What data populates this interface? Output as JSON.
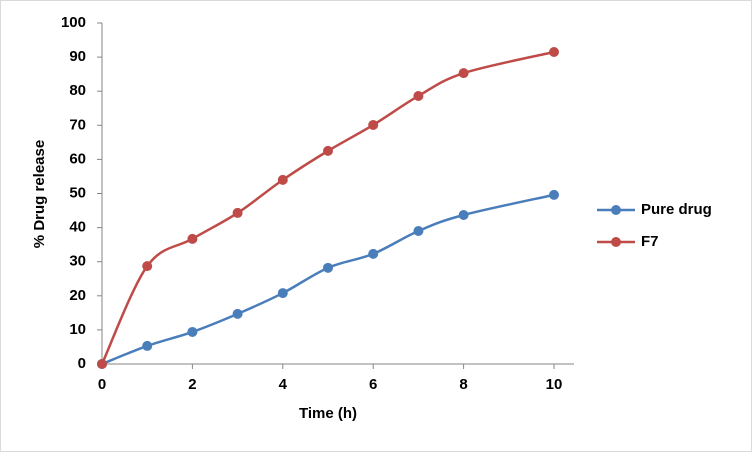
{
  "chart_data": {
    "type": "line",
    "x_label": "Time (h)",
    "y_label": "% Drug release",
    "x": [
      0,
      1,
      2,
      3,
      4,
      5,
      6,
      7,
      8,
      10
    ],
    "series": [
      {
        "name": "Pure drug",
        "color": "#4a7ebb",
        "values": [
          0,
          5.3,
          9.4,
          14.7,
          20.8,
          28.2,
          32.3,
          39,
          43.7,
          49.6
        ]
      },
      {
        "name": "F7",
        "color": "#be4b48",
        "values": [
          0,
          28.7,
          36.7,
          44.3,
          54,
          62.5,
          70.1,
          78.6,
          85.3,
          91.5
        ]
      }
    ],
    "xlim": [
      0,
      10
    ],
    "xticks": [
      0,
      2,
      4,
      6,
      8,
      10
    ],
    "ylim": [
      0,
      100
    ],
    "yticks": [
      0,
      10,
      20,
      30,
      40,
      50,
      60,
      70,
      80,
      90,
      100
    ],
    "grid": false,
    "smooth": true,
    "legend": "right"
  }
}
